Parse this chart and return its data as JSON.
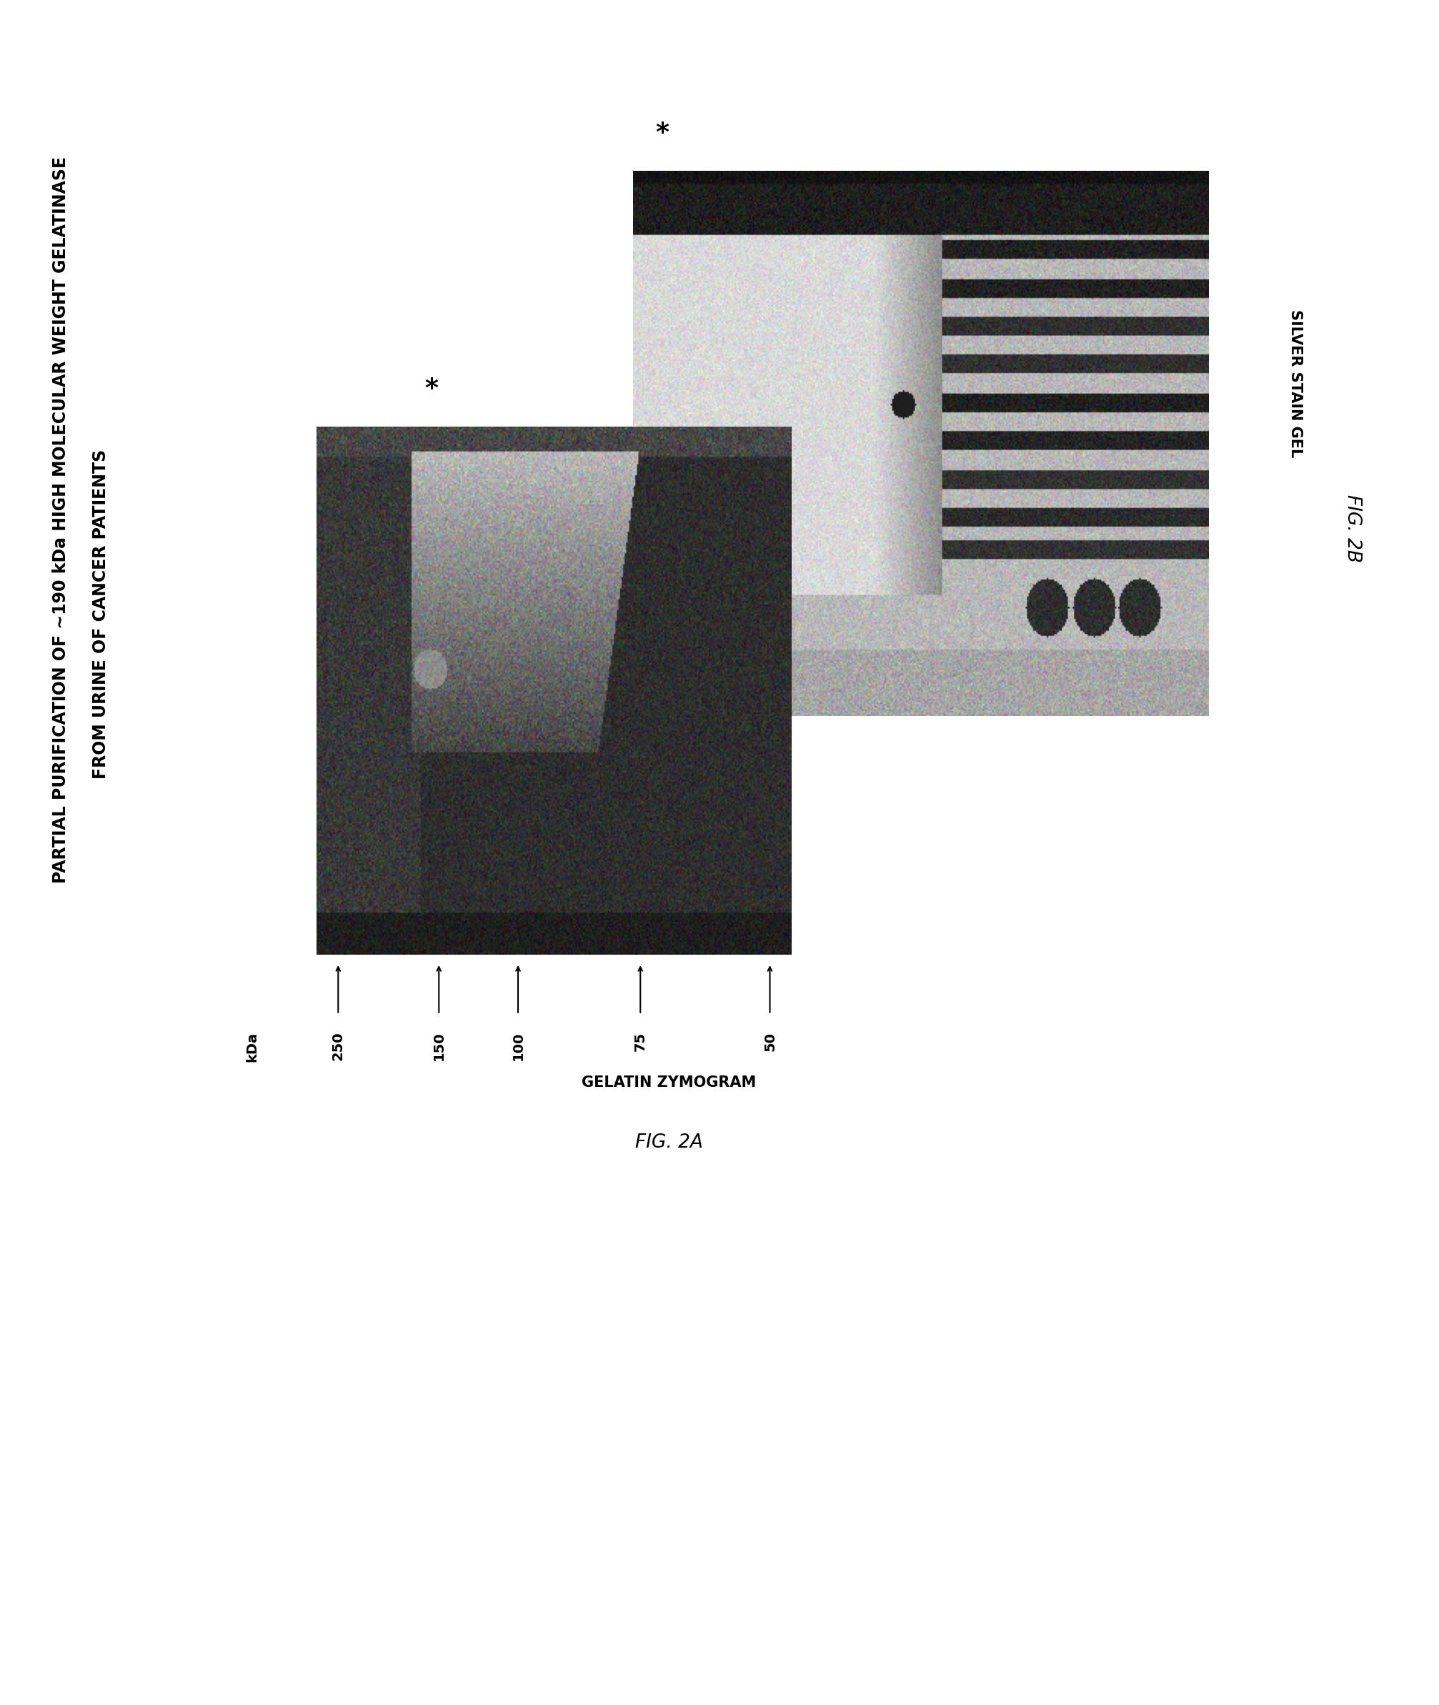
{
  "title_line1": "PARTIAL PURIFICATION OF ∼190 kDa HIGH MOLECULAR WEIGHT GELATINASE",
  "title_line2": "FROM URINE OF CANCER PATIENTS",
  "title_fontsize": 17,
  "background_color": "#ffffff",
  "kda_labels": [
    "kDa",
    "250",
    "150",
    "100",
    "75",
    "50"
  ],
  "fig2A_label": "FIG. 2A",
  "fig2B_label": "FIG. 2B",
  "gel_label_A": "GELATIN ZYMOGRAM",
  "gel_label_B": "SILVER STAIN GEL",
  "label_fontsize": 15,
  "fig_label_fontsize": 19
}
